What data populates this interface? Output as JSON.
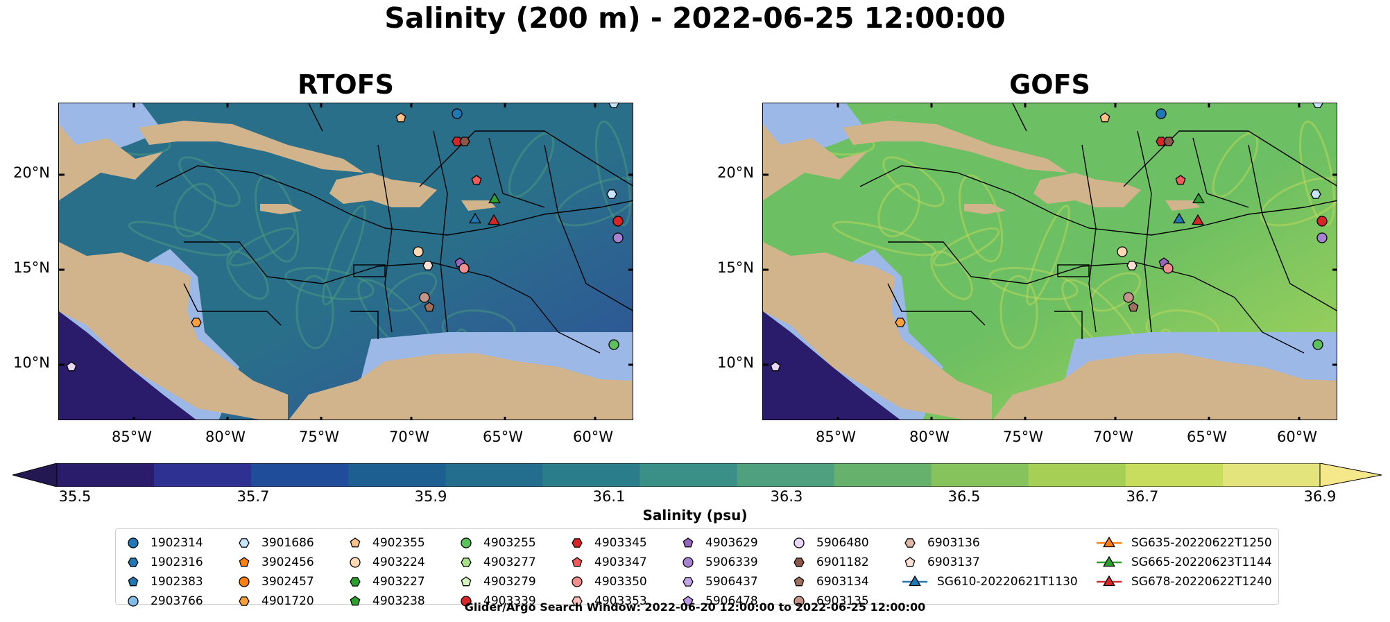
{
  "title": "Salinity (200 m) - 2022-06-25 12:00:00",
  "panels": [
    {
      "title": "RTOFS",
      "sea_color": "#2a6f8a",
      "sea_color2": "#2f4f9a"
    },
    {
      "title": "GOFS",
      "sea_color": "#6cbf62",
      "sea_color2": "#a8d55a"
    }
  ],
  "lat_labels": [
    "20°N",
    "15°N",
    "10°N"
  ],
  "lon_labels": [
    "85°W",
    "80°W",
    "75°W",
    "70°W",
    "65°W",
    "60°W"
  ],
  "colorbar": {
    "ticks": [
      "35.5",
      "35.7",
      "35.9",
      "36.1",
      "36.3",
      "36.5",
      "36.7",
      "36.9"
    ],
    "label": "Salinity (psu)",
    "colors": [
      "#2b1b6b",
      "#2e3192",
      "#1f4d9a",
      "#1e5f92",
      "#236e8e",
      "#2a7e8c",
      "#3a8f87",
      "#4fa07e",
      "#66b26c",
      "#86c35d",
      "#a6cf56",
      "#c8dc5e",
      "#e3e47c"
    ],
    "extend_low": "#231852",
    "extend_high": "#f5e88a"
  },
  "legend": {
    "columns": [
      [
        {
          "label": "1902314",
          "marker": "circle",
          "color": "#1f77b4"
        },
        {
          "label": "1902316",
          "marker": "hexagon",
          "color": "#1f77b4"
        },
        {
          "label": "1902383",
          "marker": "pentagon",
          "color": "#1f77b4"
        },
        {
          "label": "2903766",
          "marker": "circle",
          "color": "#7fbde8"
        }
      ],
      [
        {
          "label": "3901686",
          "marker": "hexagon",
          "color": "#c9e6ff"
        },
        {
          "label": "3902456",
          "marker": "pentagon",
          "color": "#ff7f0e"
        },
        {
          "label": "3902457",
          "marker": "circle",
          "color": "#ff7f0e"
        },
        {
          "label": "4901720",
          "marker": "hexagon",
          "color": "#ff9f3a"
        }
      ],
      [
        {
          "label": "4902355",
          "marker": "pentagon",
          "color": "#ffc38a"
        },
        {
          "label": "4903224",
          "marker": "circle",
          "color": "#ffd9b3"
        },
        {
          "label": "4903227",
          "marker": "hexagon",
          "color": "#2ca02c"
        },
        {
          "label": "4903238",
          "marker": "pentagon",
          "color": "#2ca02c"
        }
      ],
      [
        {
          "label": "4903255",
          "marker": "circle",
          "color": "#5cc05c"
        },
        {
          "label": "4903277",
          "marker": "hexagon",
          "color": "#a8e08a"
        },
        {
          "label": "4903279",
          "marker": "pentagon",
          "color": "#d6f5c0"
        },
        {
          "label": "4903339",
          "marker": "circle",
          "color": "#d62728"
        }
      ],
      [
        {
          "label": "4903345",
          "marker": "hexagon",
          "color": "#d62728"
        },
        {
          "label": "4903347",
          "marker": "pentagon",
          "color": "#f05a5a"
        },
        {
          "label": "4903350",
          "marker": "circle",
          "color": "#f08f8f"
        },
        {
          "label": "4903353",
          "marker": "hexagon",
          "color": "#ffc0c0"
        }
      ],
      [
        {
          "label": "4903629",
          "marker": "pentagon",
          "color": "#9467bd"
        },
        {
          "label": "5906339",
          "marker": "circle",
          "color": "#a583d0"
        },
        {
          "label": "5906437",
          "marker": "hexagon",
          "color": "#c3a5e6"
        },
        {
          "label": "5906478",
          "marker": "pentagon",
          "color": "#b896e0"
        }
      ],
      [
        {
          "label": "5906480",
          "marker": "circle",
          "color": "#e8d6f5"
        },
        {
          "label": "6901182",
          "marker": "hexagon",
          "color": "#8c564b"
        },
        {
          "label": "6903134",
          "marker": "pentagon",
          "color": "#a0705e"
        },
        {
          "label": "6903135",
          "marker": "circle",
          "color": "#c49488"
        }
      ],
      [
        {
          "label": "6903136",
          "marker": "hexagon",
          "color": "#e0b8a8"
        },
        {
          "label": "6903137",
          "marker": "pentagon",
          "color": "#ffe0d6"
        },
        {
          "label": "SG610-20220621T1130",
          "marker": "triangle",
          "color": "#1f77b4"
        }
      ],
      [
        {
          "label": "SG635-20220622T1250",
          "marker": "triangle",
          "color": "#ff7f0e"
        },
        {
          "label": "SG665-20220623T1144",
          "marker": "triangle",
          "color": "#2ca02c"
        },
        {
          "label": "SG678-20220622T1240",
          "marker": "triangle",
          "color": "#d62728"
        }
      ]
    ]
  },
  "search_window": "Glider/Argo Search Window: 2022-06-20 12:00:00 to 2022-06-25 12:00:00",
  "land_color": "#d2b48c",
  "shelf_color": "#9bb8e6",
  "pacific_color": "#2b1b6b"
}
